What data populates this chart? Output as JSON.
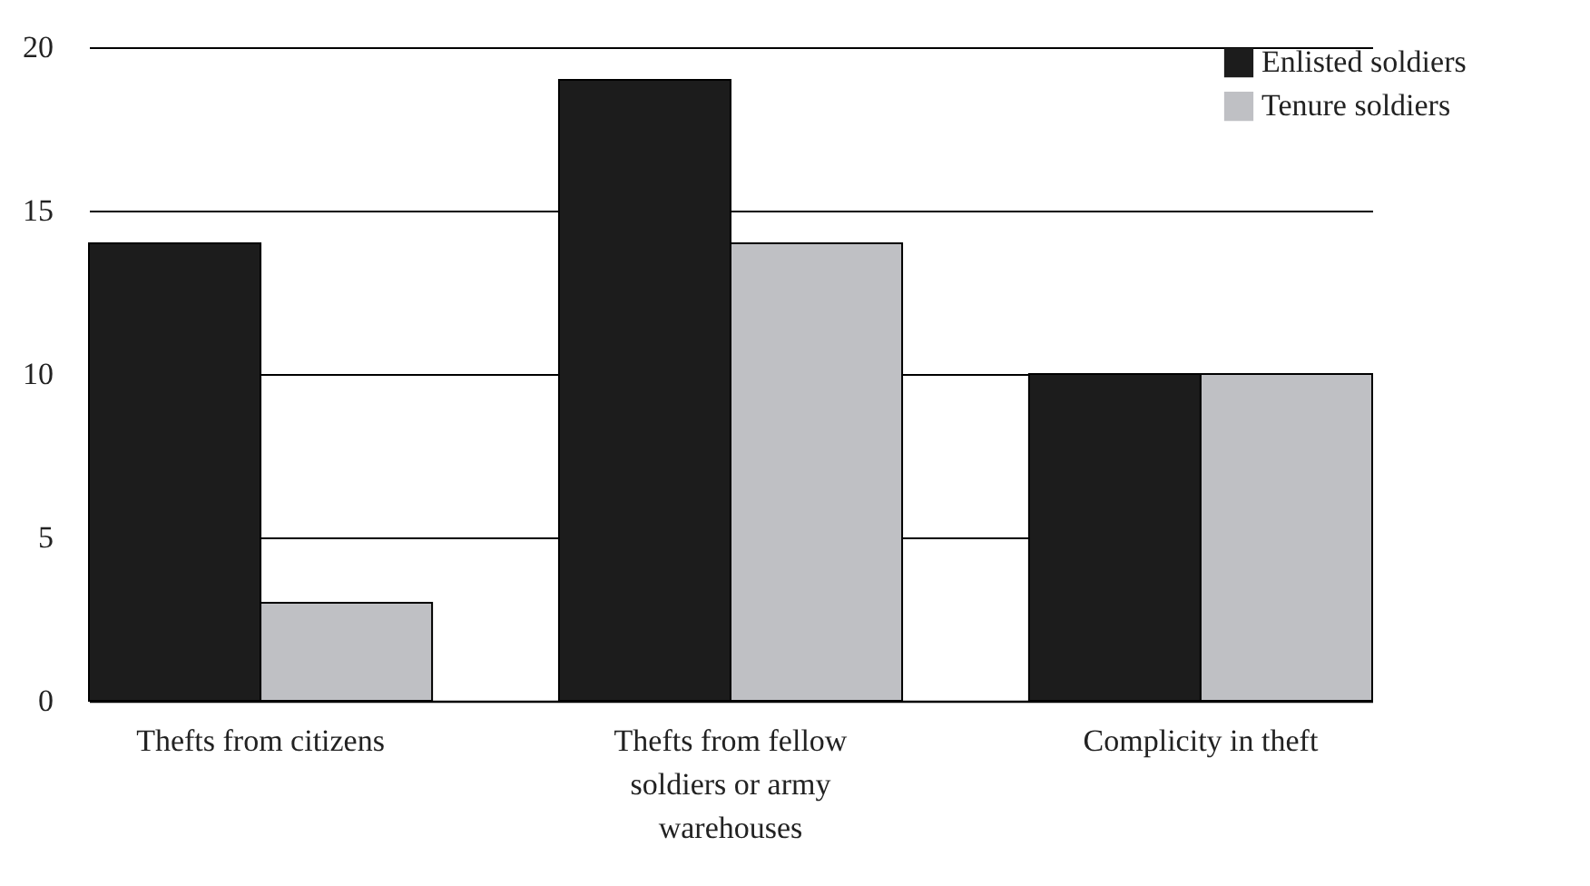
{
  "chart_data": {
    "type": "bar",
    "categories": [
      "Thefts from citizens",
      "Thefts from fellow soldiers or army warehouses",
      "Complicity in theft"
    ],
    "series": [
      {
        "name": "Enlisted soldiers",
        "color": "#1c1c1c",
        "values": [
          14,
          19,
          10
        ]
      },
      {
        "name": "Tenure soldiers",
        "color": "#bfc0c4",
        "values": [
          3,
          14,
          10
        ]
      }
    ],
    "ylim": [
      0,
      20
    ],
    "yticks": [
      0,
      5,
      10,
      15,
      20
    ],
    "grid": "y",
    "legend": "top right"
  }
}
